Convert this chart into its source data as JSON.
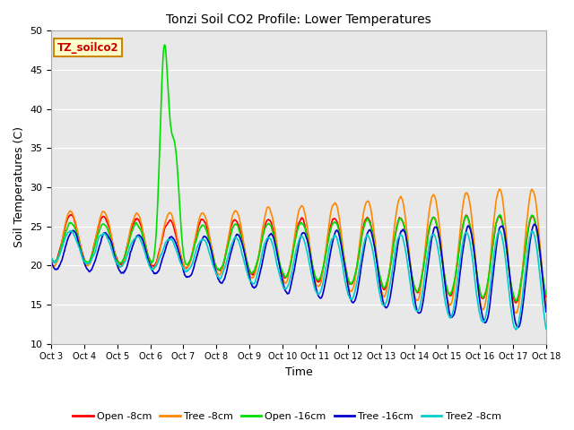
{
  "title": "Tonzi Soil CO2 Profile: Lower Temperatures",
  "xlabel": "Time",
  "ylabel": "Soil Temperatures (C)",
  "ylim": [
    10,
    50
  ],
  "yticks": [
    10,
    15,
    20,
    25,
    30,
    35,
    40,
    45,
    50
  ],
  "xlim": [
    0,
    360
  ],
  "bg_color": "#e8e8e8",
  "fig_color": "#ffffff",
  "annotation_text": "TZ_soilco2",
  "annotation_bg": "#ffffcc",
  "annotation_border": "#cc8800",
  "annotation_text_color": "#cc0000",
  "series_colors": [
    "#ff0000",
    "#ff8800",
    "#00dd00",
    "#0000cc",
    "#00cccc"
  ],
  "series_labels": [
    "Open -8cm",
    "Tree -8cm",
    "Open -16cm",
    "Tree -16cm",
    "Tree2 -8cm"
  ],
  "xtick_labels": [
    "Oct 3",
    "Oct 4",
    "Oct 5",
    "Oct 6",
    "Oct 7",
    "Oct 8",
    "Oct 9",
    "Oct 10",
    "Oct 11",
    "Oct 12",
    "Oct 13",
    "Oct 14",
    "Oct 15",
    "Oct 16",
    "Oct 17",
    "Oct 18"
  ],
  "xtick_positions": [
    0,
    24,
    48,
    72,
    96,
    120,
    144,
    168,
    192,
    216,
    240,
    264,
    288,
    312,
    336,
    360
  ]
}
